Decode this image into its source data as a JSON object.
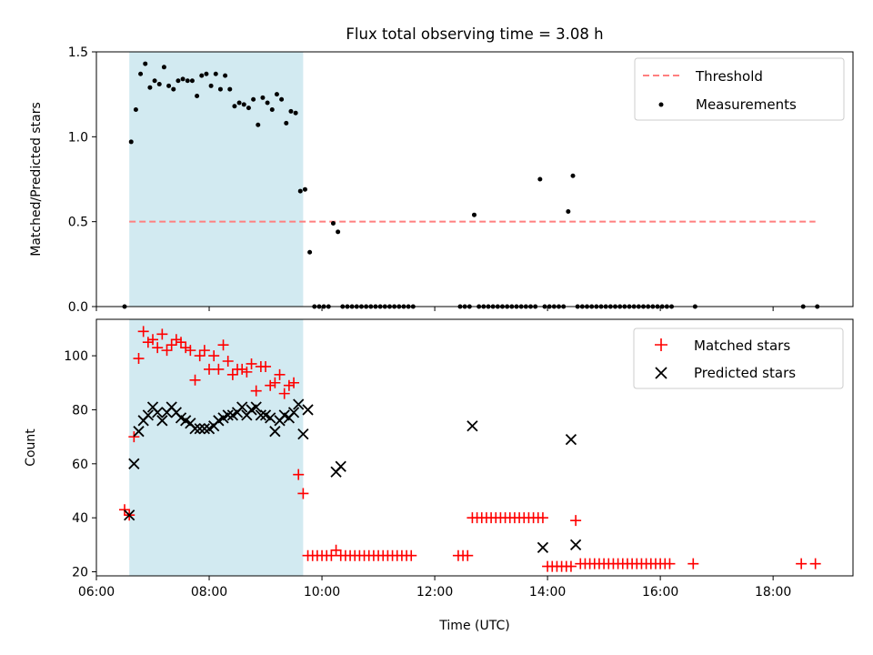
{
  "title": "Flux total observing time = 3.08 h",
  "colors": {
    "threshold": "#ff7f7f",
    "measurements": "#000000",
    "matched": "#ff0000",
    "predicted": "#000000",
    "highlight": "#add8e6"
  },
  "chart_data": [
    {
      "type": "scatter",
      "ylabel": "Matched/Predicted stars",
      "xlabel": "",
      "xlim": [
        "06:00",
        "19:25"
      ],
      "ylim": [
        0,
        1.5
      ],
      "yticks": [
        "0.0",
        "0.5",
        "1.0",
        "1.5"
      ],
      "xticks": [
        "06:00",
        "08:00",
        "10:00",
        "12:00",
        "14:00",
        "16:00",
        "18:00"
      ],
      "highlight_span": [
        "06:35",
        "09:40"
      ],
      "legend_position": "top-right",
      "threshold": {
        "name": "Threshold",
        "y": 0.5,
        "x": [
          "06:35",
          "18:45"
        ]
      },
      "series": [
        {
          "name": "Measurements",
          "x": [
            "06:30",
            "06:37",
            "06:42",
            "06:47",
            "06:52",
            "06:57",
            "07:02",
            "07:07",
            "07:12",
            "07:17",
            "07:22",
            "07:27",
            "07:32",
            "07:37",
            "07:42",
            "07:47",
            "07:52",
            "07:57",
            "08:02",
            "08:07",
            "08:12",
            "08:17",
            "08:22",
            "08:27",
            "08:32",
            "08:37",
            "08:42",
            "08:47",
            "08:52",
            "08:57",
            "09:02",
            "09:07",
            "09:12",
            "09:17",
            "09:22",
            "09:27",
            "09:32",
            "09:37",
            "09:42",
            "09:47",
            "09:52",
            "09:57",
            "10:02",
            "10:07",
            "10:12",
            "10:17",
            "10:22",
            "10:27",
            "10:32",
            "10:37",
            "10:42",
            "10:47",
            "10:52",
            "10:57",
            "11:02",
            "11:07",
            "11:12",
            "11:17",
            "11:22",
            "11:27",
            "11:32",
            "11:37",
            "12:27",
            "12:32",
            "12:37",
            "12:42",
            "12:47",
            "12:52",
            "12:57",
            "13:02",
            "13:07",
            "13:12",
            "13:17",
            "13:22",
            "13:27",
            "13:32",
            "13:37",
            "13:42",
            "13:47",
            "13:52",
            "13:57",
            "14:02",
            "14:07",
            "14:12",
            "14:17",
            "14:22",
            "14:27",
            "14:32",
            "14:37",
            "14:42",
            "14:47",
            "14:52",
            "14:57",
            "15:02",
            "15:07",
            "15:12",
            "15:17",
            "15:22",
            "15:27",
            "15:32",
            "15:37",
            "15:42",
            "15:47",
            "15:52",
            "15:57",
            "16:02",
            "16:07",
            "16:12",
            "16:37",
            "18:32",
            "18:47"
          ],
          "y": [
            0.0,
            0.97,
            1.16,
            1.37,
            1.43,
            1.29,
            1.33,
            1.31,
            1.41,
            1.3,
            1.28,
            1.33,
            1.34,
            1.33,
            1.33,
            1.24,
            1.36,
            1.37,
            1.3,
            1.37,
            1.28,
            1.36,
            1.28,
            1.18,
            1.2,
            1.19,
            1.17,
            1.22,
            1.07,
            1.23,
            1.2,
            1.16,
            1.25,
            1.22,
            1.08,
            1.15,
            1.14,
            0.68,
            0.69,
            0.32,
            0.0,
            0.0,
            0.0,
            0.0,
            0.49,
            0.44,
            0.0,
            0.0,
            0.0,
            0.0,
            0.0,
            0.0,
            0.0,
            0.0,
            0.0,
            0.0,
            0.0,
            0.0,
            0.0,
            0.0,
            0.0,
            0.0,
            0.0,
            0.0,
            0.0,
            0.54,
            0.0,
            0.0,
            0.0,
            0.0,
            0.0,
            0.0,
            0.0,
            0.0,
            0.0,
            0.0,
            0.0,
            0.0,
            0.0,
            0.75,
            0.0,
            0.0,
            0.0,
            0.0,
            0.0,
            0.56,
            0.77,
            0.0,
            0.0,
            0.0,
            0.0,
            0.0,
            0.0,
            0.0,
            0.0,
            0.0,
            0.0,
            0.0,
            0.0,
            0.0,
            0.0,
            0.0,
            0.0,
            0.0,
            0.0,
            0.0,
            0.0,
            0.0,
            0.0,
            0.0,
            0.0
          ]
        }
      ]
    },
    {
      "type": "scatter",
      "ylabel": "Count",
      "xlabel": "Time (UTC)",
      "xlim": [
        "06:00",
        "19:25"
      ],
      "ylim": [
        18.5,
        113.5
      ],
      "yticks": [
        "20",
        "40",
        "60",
        "80",
        "100"
      ],
      "xticks": [
        "06:00",
        "08:00",
        "10:00",
        "12:00",
        "14:00",
        "16:00",
        "18:00"
      ],
      "highlight_span": [
        "06:35",
        "09:40"
      ],
      "legend_position": "top-right",
      "series": [
        {
          "name": "Matched stars",
          "marker": "plus",
          "x": [
            "06:30",
            "06:35",
            "06:40",
            "06:45",
            "06:50",
            "06:55",
            "07:00",
            "07:05",
            "07:10",
            "07:15",
            "07:20",
            "07:25",
            "07:30",
            "07:35",
            "07:40",
            "07:45",
            "07:50",
            "07:55",
            "08:00",
            "08:05",
            "08:10",
            "08:15",
            "08:20",
            "08:25",
            "08:30",
            "08:35",
            "08:40",
            "08:45",
            "08:50",
            "08:55",
            "09:00",
            "09:05",
            "09:10",
            "09:15",
            "09:20",
            "09:25",
            "09:30",
            "09:35",
            "09:40",
            "09:45",
            "09:50",
            "09:55",
            "10:00",
            "10:05",
            "10:10",
            "10:15",
            "10:20",
            "10:25",
            "10:30",
            "10:35",
            "10:40",
            "10:45",
            "10:50",
            "10:55",
            "11:00",
            "11:05",
            "11:10",
            "11:15",
            "11:20",
            "11:25",
            "11:30",
            "11:35",
            "12:25",
            "12:30",
            "12:35",
            "12:40",
            "12:45",
            "12:50",
            "12:55",
            "13:00",
            "13:05",
            "13:10",
            "13:15",
            "13:20",
            "13:25",
            "13:30",
            "13:35",
            "13:40",
            "13:45",
            "13:50",
            "13:55",
            "14:00",
            "14:05",
            "14:10",
            "14:15",
            "14:20",
            "14:25",
            "14:30",
            "14:35",
            "14:40",
            "14:45",
            "14:50",
            "14:55",
            "15:00",
            "15:05",
            "15:10",
            "15:15",
            "15:20",
            "15:25",
            "15:30",
            "15:35",
            "15:40",
            "15:45",
            "15:50",
            "15:55",
            "16:00",
            "16:05",
            "16:10",
            "16:35",
            "18:30",
            "18:45"
          ],
          "y": [
            43,
            41,
            70,
            99,
            109,
            105,
            106,
            103,
            108,
            102,
            104,
            106,
            105,
            103,
            102,
            91,
            100,
            102,
            95,
            100,
            95,
            104,
            98,
            93,
            95,
            95,
            94,
            97,
            87,
            96,
            96,
            89,
            90,
            93,
            86,
            89,
            90,
            56,
            49,
            26,
            26,
            26,
            26,
            26,
            26,
            28,
            26,
            26,
            26,
            26,
            26,
            26,
            26,
            26,
            26,
            26,
            26,
            26,
            26,
            26,
            26,
            26,
            26,
            26,
            26,
            40,
            40,
            40,
            40,
            40,
            40,
            40,
            40,
            40,
            40,
            40,
            40,
            40,
            40,
            40,
            40,
            22,
            22,
            22,
            22,
            22,
            22,
            39,
            23,
            23,
            23,
            23,
            23,
            23,
            23,
            23,
            23,
            23,
            23,
            23,
            23,
            23,
            23,
            23,
            23,
            23,
            23,
            23,
            23,
            23,
            23
          ]
        },
        {
          "name": "Predicted stars",
          "marker": "x",
          "x": [
            "06:35",
            "06:40",
            "06:45",
            "06:50",
            "06:55",
            "07:00",
            "07:05",
            "07:10",
            "07:15",
            "07:20",
            "07:25",
            "07:30",
            "07:35",
            "07:40",
            "07:45",
            "07:50",
            "07:55",
            "08:00",
            "08:05",
            "08:10",
            "08:15",
            "08:20",
            "08:25",
            "08:30",
            "08:35",
            "08:40",
            "08:45",
            "08:50",
            "08:55",
            "09:00",
            "09:05",
            "09:10",
            "09:15",
            "09:20",
            "09:25",
            "09:30",
            "09:35",
            "09:40",
            "09:45",
            "10:15",
            "10:20",
            "12:40",
            "13:55",
            "14:25",
            "14:30"
          ],
          "y": [
            41,
            60,
            72,
            76,
            78,
            81,
            79,
            76,
            79,
            81,
            79,
            77,
            76,
            75,
            73,
            73,
            73,
            73,
            74,
            76,
            77,
            78,
            78,
            79,
            81,
            78,
            80,
            81,
            78,
            78,
            77,
            72,
            76,
            78,
            77,
            79,
            82,
            71,
            80,
            57,
            59,
            74,
            29,
            69,
            30
          ]
        }
      ]
    }
  ]
}
